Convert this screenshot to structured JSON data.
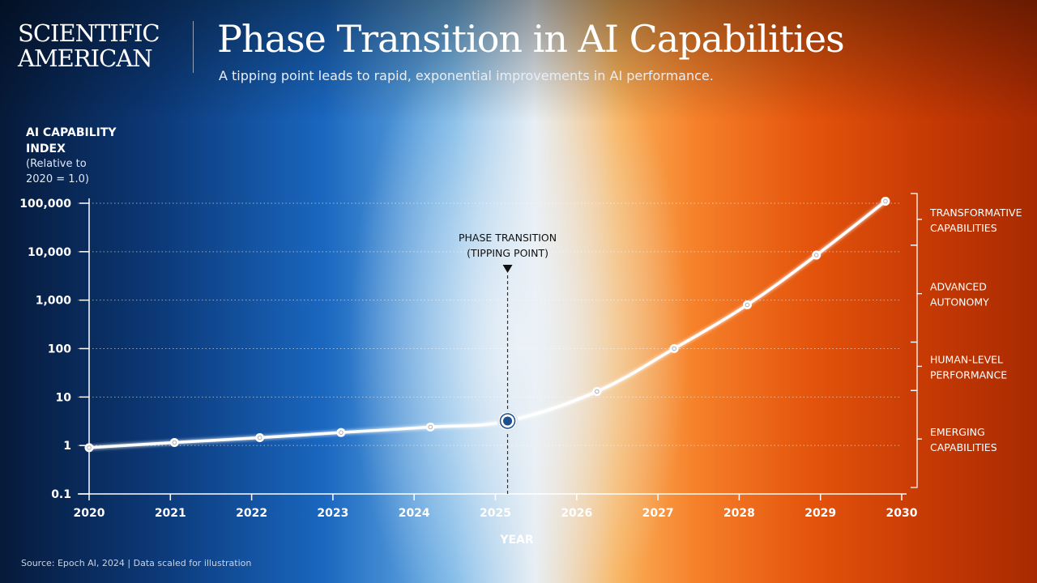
{
  "header": {
    "logo": "SCIENTIFIC\nAMERICAN",
    "title": "Phase Transition in AI Capabilities",
    "subtitle": "A tipping point leads to rapid, exponential improvements in AI performance."
  },
  "footer": {
    "source": "Source:  Epoch AI, 2024  |  Data scaled for illustration"
  },
  "colors": {
    "line": "#ffffff",
    "marker_fill": "#ffffff",
    "highlight_marker": "#1b4f8f",
    "annotation_text": "#111111"
  },
  "chart_data": {
    "type": "line",
    "title": "Phase Transition in AI Capabilities",
    "subtitle": "A tipping point leads to rapid, exponential improvements in AI performance.",
    "ylabel": "AI CAPABILITY\nINDEX",
    "ylabel_note": "(Relative to\n2020 = 1.0)",
    "xlabel": "YEAR",
    "y_scale": "log",
    "ylim": [
      0.1,
      100000
    ],
    "xlim": [
      2020,
      2030
    ],
    "y_ticks": [
      {
        "value": 0.1,
        "label": "0.1"
      },
      {
        "value": 1,
        "label": "1"
      },
      {
        "value": 10,
        "label": "10"
      },
      {
        "value": 100,
        "label": "100"
      },
      {
        "value": 1000,
        "label": "1,000"
      },
      {
        "value": 10000,
        "label": "10,000"
      },
      {
        "value": 100000,
        "label": "100,000"
      }
    ],
    "x_ticks": [
      2020,
      2021,
      2022,
      2023,
      2024,
      2025,
      2026,
      2027,
      2028,
      2029,
      2030
    ],
    "grid": "horizontal-dotted",
    "series": [
      {
        "points": [
          {
            "x": 2020.0,
            "y": 0.9
          },
          {
            "x": 2021.05,
            "y": 1.15
          },
          {
            "x": 2022.1,
            "y": 1.45
          },
          {
            "x": 2023.1,
            "y": 1.85
          },
          {
            "x": 2024.2,
            "y": 2.4
          },
          {
            "x": 2025.15,
            "y": 3.2,
            "highlight": true
          },
          {
            "x": 2026.25,
            "y": 13
          },
          {
            "x": 2027.2,
            "y": 100
          },
          {
            "x": 2028.1,
            "y": 800
          },
          {
            "x": 2028.95,
            "y": 8500
          },
          {
            "x": 2029.8,
            "y": 110000
          }
        ]
      }
    ],
    "annotation": {
      "x": 2025.15,
      "label_line1": "PHASE TRANSITION",
      "label_line2": "(TIPPING POINT)"
    },
    "regions": [
      {
        "line1": "TRANSFORMATIVE",
        "line2": "CAPABILITIES",
        "y_from": 10000,
        "y_to": 100000
      },
      {
        "line1": "ADVANCED",
        "line2": "AUTONOMY",
        "y_from": 100,
        "y_to": 10000
      },
      {
        "line1": "HUMAN-LEVEL",
        "line2": "PERFORMANCE",
        "y_from": 10,
        "y_to": 100
      },
      {
        "line1": "EMERGING",
        "line2": "CAPABILITIES",
        "y_from": 0.1,
        "y_to": 10
      }
    ]
  }
}
